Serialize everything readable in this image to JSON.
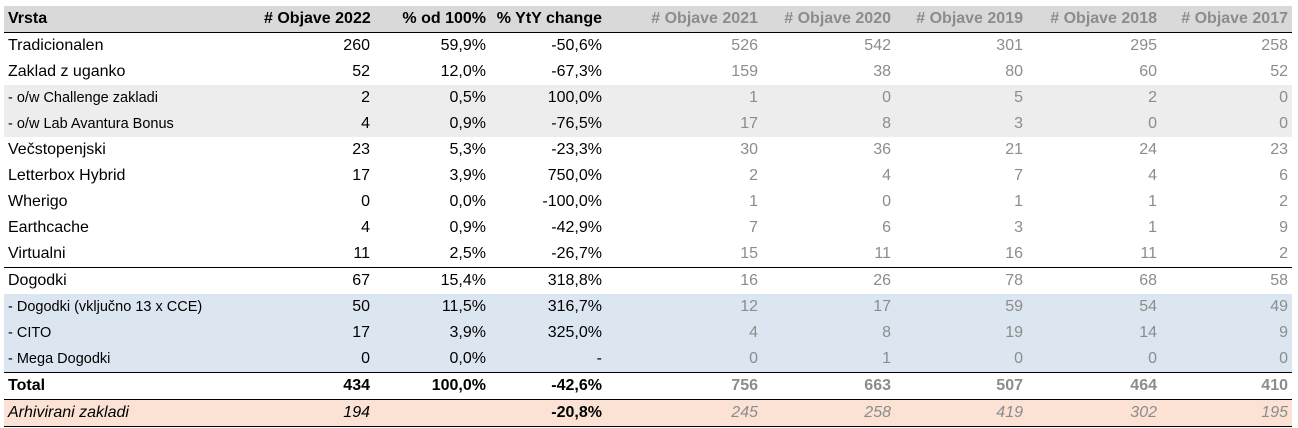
{
  "chart_data": {
    "type": "table",
    "columns": [
      "Vrsta",
      "# Objave 2022",
      "% od 100%",
      "% YtY change",
      "# Objave 2021",
      "# Objave 2020",
      "# Objave 2019",
      "# Objave 2018",
      "# Objave 2017"
    ],
    "rows": [
      {
        "style": "normal",
        "cells": [
          "Tradicionalen",
          "260",
          "59,9%",
          "-50,6%",
          "526",
          "542",
          "301",
          "295",
          "258"
        ]
      },
      {
        "style": "normal",
        "cells": [
          "Zaklad z uganko",
          "52",
          "12,0%",
          "-67,3%",
          "159",
          "38",
          "80",
          "60",
          "52"
        ]
      },
      {
        "style": "sub-grey",
        "cells": [
          " - o/w Challenge zakladi",
          "2",
          "0,5%",
          "100,0%",
          "1",
          "0",
          "5",
          "2",
          "0"
        ]
      },
      {
        "style": "sub-grey",
        "cells": [
          " - o/w Lab Avantura Bonus",
          "4",
          "0,9%",
          "-76,5%",
          "17",
          "8",
          "3",
          "0",
          "0"
        ]
      },
      {
        "style": "normal",
        "cells": [
          "Večstopenjski",
          "23",
          "5,3%",
          "-23,3%",
          "30",
          "36",
          "21",
          "24",
          "23"
        ]
      },
      {
        "style": "normal",
        "cells": [
          "Letterbox Hybrid",
          "17",
          "3,9%",
          "750,0%",
          "2",
          "4",
          "7",
          "4",
          "6"
        ]
      },
      {
        "style": "normal",
        "cells": [
          "Wherigo",
          "0",
          "0,0%",
          "-100,0%",
          "1",
          "0",
          "1",
          "1",
          "2"
        ]
      },
      {
        "style": "normal",
        "cells": [
          "Earthcache",
          "4",
          "0,9%",
          "-42,9%",
          "7",
          "6",
          "3",
          "1",
          "9"
        ]
      },
      {
        "style": "normal",
        "cells": [
          "Virtualni",
          "11",
          "2,5%",
          "-26,7%",
          "15",
          "11",
          "16",
          "11",
          "2"
        ]
      },
      {
        "style": "topline",
        "cells": [
          "Dogodki",
          "67",
          "15,4%",
          "318,8%",
          "16",
          "26",
          "78",
          "68",
          "58"
        ]
      },
      {
        "style": "sub-blue",
        "cells": [
          " - Dogodki (vključno 13 x CCE)",
          "50",
          "11,5%",
          "316,7%",
          "12",
          "17",
          "59",
          "54",
          "49"
        ]
      },
      {
        "style": "sub-blue",
        "cells": [
          " - CITO",
          "17",
          "3,9%",
          "325,0%",
          "4",
          "8",
          "19",
          "14",
          "9"
        ]
      },
      {
        "style": "sub-blue",
        "cells": [
          " - Mega Dogodki",
          "0",
          "0,0%",
          "-",
          "0",
          "1",
          "0",
          "0",
          "0"
        ]
      },
      {
        "style": "total",
        "cells": [
          "Total",
          "434",
          "100,0%",
          "-42,6%",
          "756",
          "663",
          "507",
          "464",
          "410"
        ]
      },
      {
        "style": "arch",
        "cells": [
          "Arhivirani zakladi",
          "194",
          "",
          "-20,8%",
          "245",
          "258",
          "419",
          "302",
          "195"
        ]
      }
    ],
    "colors": {
      "header_bg": "#d9d9d9",
      "sub_grey_bg": "#ededed",
      "sub_blue_bg": "#dce6f1",
      "archived_bg": "#fbe2d5",
      "historic_text": "#8c8c8c"
    }
  }
}
